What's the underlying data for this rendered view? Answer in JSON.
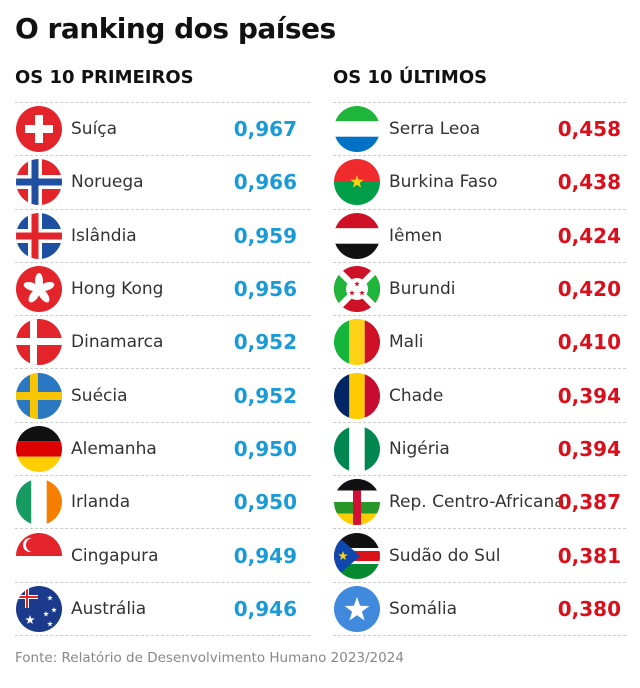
{
  "title": "O ranking dos países",
  "colors": {
    "top": "#1a9ad6",
    "bottom": "#d9101c"
  },
  "top": {
    "heading": "OS 10 PRIMEIROS",
    "items": [
      {
        "country": "Suíça",
        "value": "0,967",
        "flag": "switzerland-flag-icon"
      },
      {
        "country": "Noruega",
        "value": "0,966",
        "flag": "norway-flag-icon"
      },
      {
        "country": "Islândia",
        "value": "0,959",
        "flag": "iceland-flag-icon"
      },
      {
        "country": "Hong Kong",
        "value": "0,956",
        "flag": "hong-kong-flag-icon"
      },
      {
        "country": "Dinamarca",
        "value": "0,952",
        "flag": "denmark-flag-icon"
      },
      {
        "country": "Suécia",
        "value": "0,952",
        "flag": "sweden-flag-icon"
      },
      {
        "country": "Alemanha",
        "value": "0,950",
        "flag": "germany-flag-icon"
      },
      {
        "country": "Irlanda",
        "value": "0,950",
        "flag": "ireland-flag-icon"
      },
      {
        "country": "Cingapura",
        "value": "0,949",
        "flag": "singapore-flag-icon"
      },
      {
        "country": "Austrália",
        "value": "0,946",
        "flag": "australia-flag-icon"
      }
    ]
  },
  "bottom": {
    "heading": "OS 10 ÚLTIMOS",
    "items": [
      {
        "country": "Serra Leoa",
        "value": "0,458",
        "flag": "sierra-leone-flag-icon"
      },
      {
        "country": "Burkina Faso",
        "value": "0,438",
        "flag": "burkina-faso-flag-icon"
      },
      {
        "country": "Iêmen",
        "value": "0,424",
        "flag": "yemen-flag-icon"
      },
      {
        "country": "Burundi",
        "value": "0,420",
        "flag": "burundi-flag-icon"
      },
      {
        "country": "Mali",
        "value": "0,410",
        "flag": "mali-flag-icon"
      },
      {
        "country": "Chade",
        "value": "0,394",
        "flag": "chad-flag-icon"
      },
      {
        "country": "Nigéria",
        "value": "0,394",
        "flag": "nigeria-flag-icon"
      },
      {
        "country": "Rep. Centro-Africana",
        "value": "0,387",
        "flag": "central-african-republic-flag-icon"
      },
      {
        "country": "Sudão do Sul",
        "value": "0,381",
        "flag": "south-sudan-flag-icon"
      },
      {
        "country": "Somália",
        "value": "0,380",
        "flag": "somalia-flag-icon"
      }
    ]
  },
  "source": "Fonte: Relatório de Desenvolvimento Humano 2023/2024",
  "chart_data": {
    "type": "table",
    "title": "O ranking dos países",
    "columns": [
      "OS 10 PRIMEIROS",
      "OS 10 ÚLTIMOS"
    ]
  }
}
